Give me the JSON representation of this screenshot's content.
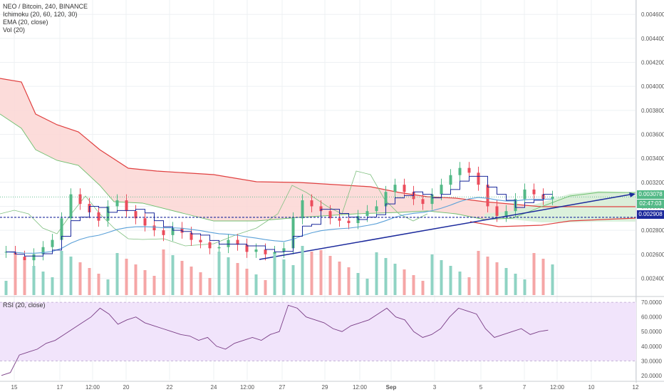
{
  "legend": {
    "symbol": "NEO / Bitcoin, 240, BINANCE",
    "ichimoku": "Ichimoku (20, 60, 120, 30)",
    "ema": "EMA (20, close)",
    "vol": "Vol (20)"
  },
  "rsi_legend": "RSI (20, close)",
  "price_tags": {
    "last": "0.003078",
    "countdown": "02:47:03",
    "level": "0.002908"
  },
  "colors": {
    "up": "#53b987",
    "down": "#eb4d5c",
    "vol_up": "#8fd3c3",
    "vol_down": "#f5a6a6",
    "cloud_red": "#fbd6d3",
    "cloud_green": "#d7efd8",
    "rsi_band": "#f1e4fb",
    "trendline": "#1c2a9c",
    "tenkan": "#1c2a9c",
    "kijun": "#7b1e86",
    "ema": "#5aa0d8",
    "lagging": "#7fbf7f",
    "span_a": "#6fbf6f",
    "span_b": "#e04040",
    "dotted_level": "#1c2a9c"
  },
  "chart_data": [
    {
      "type": "candlestick",
      "y_axis_ticks": [
        "0.004600",
        "0.004400",
        "0.004200",
        "0.004000",
        "0.003800",
        "0.003600",
        "0.003400",
        "0.003200",
        "0.003000",
        "0.002800",
        "0.002600",
        "0.002400"
      ],
      "x_axis_ticks": [
        "15",
        "17",
        "12:00",
        "20",
        "22",
        "24",
        "12:00",
        "27",
        "29",
        "12:00",
        "Sep",
        "3",
        "5",
        "7",
        "12:00",
        "10",
        "12"
      ],
      "ylim": [
        0.00226,
        0.00472
      ],
      "horizontal_levels": [
        0.003078,
        0.002908
      ],
      "candles_close_path": [
        0.00262,
        0.00258,
        0.00255,
        0.0026,
        0.00266,
        0.00272,
        0.0029,
        0.0031,
        0.00302,
        0.00295,
        0.00288,
        0.003,
        0.00305,
        0.00296,
        0.0029,
        0.00284,
        0.0028,
        0.00276,
        0.00282,
        0.00278,
        0.00272,
        0.0027,
        0.00265,
        0.00266,
        0.00272,
        0.00268,
        0.00262,
        0.00264,
        0.0026,
        0.00262,
        0.00265,
        0.0029,
        0.00305,
        0.003,
        0.00296,
        0.0029,
        0.00288,
        0.00286,
        0.00292,
        0.00296,
        0.003,
        0.00312,
        0.00318,
        0.00312,
        0.00306,
        0.00302,
        0.0031,
        0.00318,
        0.00326,
        0.00332,
        0.00328,
        0.00318,
        0.003,
        0.00292,
        0.00296,
        0.00306,
        0.00314,
        0.0031,
        0.00306,
        0.00308
      ]
    },
    {
      "type": "line",
      "name": "RSI (20, close)",
      "y_axis_ticks": [
        "70.0000",
        "60.0000",
        "50.0000",
        "40.0000",
        "30.0000",
        "20.0000"
      ],
      "ylim": [
        17,
        73
      ],
      "band": [
        30,
        70
      ],
      "values": [
        20,
        22,
        34,
        36,
        38,
        42,
        44,
        48,
        52,
        56,
        60,
        66,
        62,
        55,
        58,
        60,
        56,
        54,
        52,
        50,
        48,
        47,
        44,
        46,
        40,
        38,
        42,
        44,
        46,
        44,
        48,
        50,
        68,
        66,
        60,
        58,
        56,
        52,
        50,
        54,
        56,
        58,
        62,
        66,
        60,
        58,
        50,
        46,
        48,
        52,
        60,
        66,
        64,
        62,
        52,
        46,
        48,
        50,
        52,
        48,
        50,
        51
      ]
    }
  ]
}
